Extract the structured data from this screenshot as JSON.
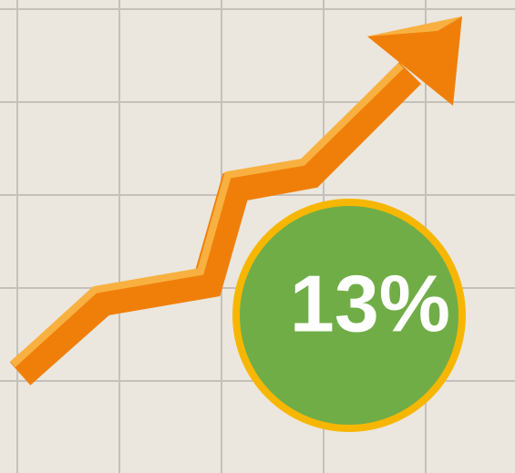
{
  "badge": {
    "text": "13%"
  }
}
